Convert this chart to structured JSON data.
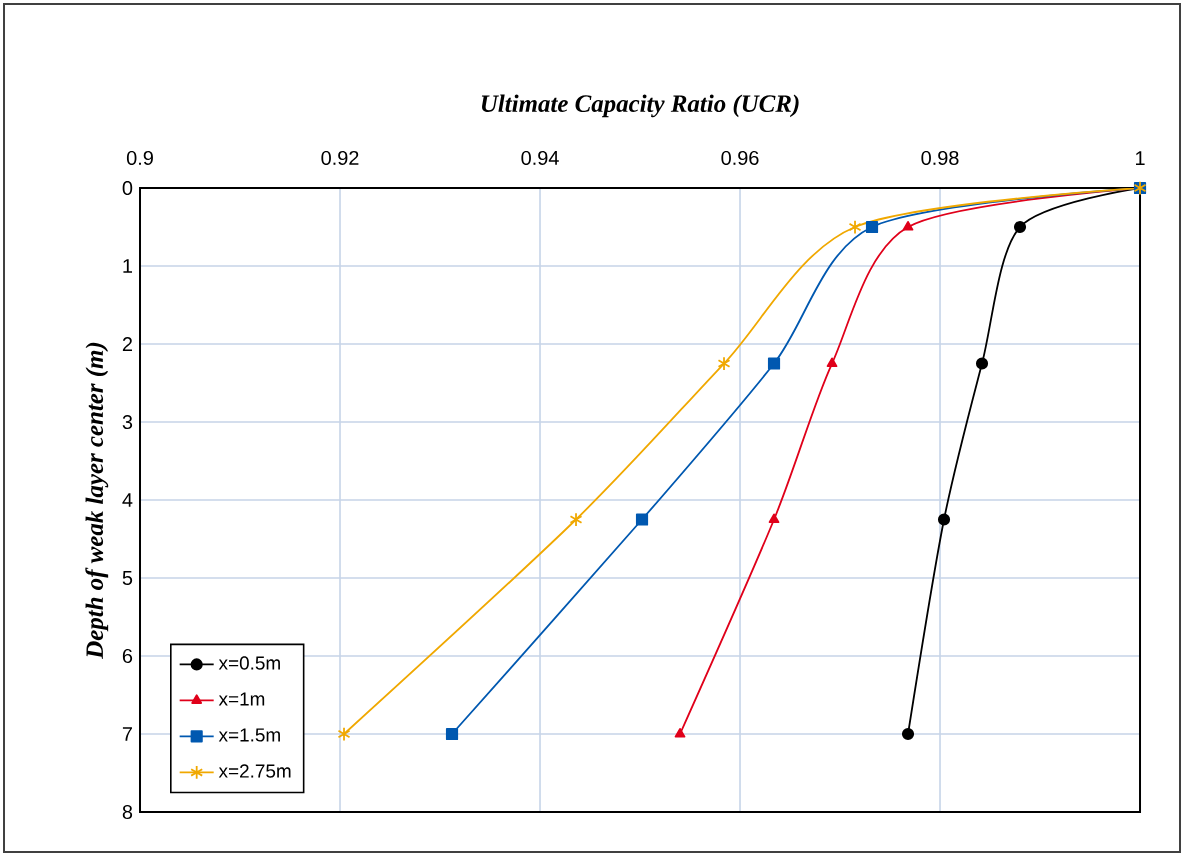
{
  "chart_data": {
    "type": "line",
    "xlabel": "Ultimate Capacity Ratio (UCR)",
    "ylabel": "Depth of weak layer center (m)",
    "xlim": [
      0.9,
      1
    ],
    "xticks": [
      0.9,
      0.92,
      0.94,
      0.96,
      0.98,
      1
    ],
    "ylim": [
      8,
      0
    ],
    "yticks": [
      0,
      1,
      2,
      3,
      4,
      5,
      6,
      7,
      8
    ],
    "grid": true,
    "legend": "bottom left",
    "series": [
      {
        "name": "x=0.5m",
        "color": "#000000",
        "marker": "circle",
        "x": [
          1,
          0.988,
          0.9842,
          0.9804,
          0.9768
        ],
        "values": [
          0,
          0.5,
          2.25,
          4.25,
          7
        ]
      },
      {
        "name": "x=1m",
        "color": "#e0001a",
        "marker": "triangle",
        "x": [
          1,
          0.9768,
          0.9692,
          0.9634,
          0.954
        ],
        "values": [
          0,
          0.5,
          2.25,
          4.25,
          7
        ]
      },
      {
        "name": "x=1.5m",
        "color": "#0058b0",
        "marker": "square",
        "x": [
          1,
          0.9732,
          0.9634,
          0.9502,
          0.9312
        ],
        "values": [
          0,
          0.5,
          2.25,
          4.25,
          7
        ]
      },
      {
        "name": "x=2.75m",
        "color": "#f0a800",
        "marker": "cross",
        "x": [
          1,
          0.9715,
          0.9584,
          0.9436,
          0.9204
        ],
        "values": [
          0,
          0.5,
          2.25,
          4.25,
          7
        ]
      }
    ]
  }
}
